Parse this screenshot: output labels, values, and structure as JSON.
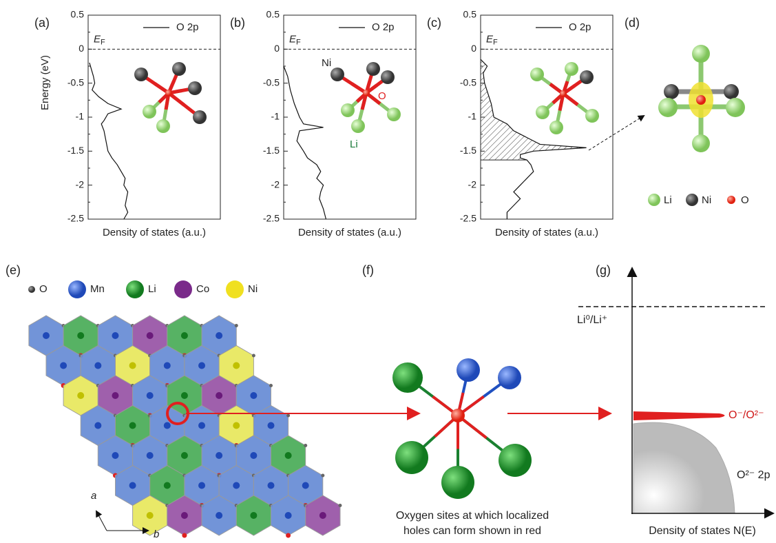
{
  "chart_data": [
    {
      "type": "line",
      "panel_label": "(a)",
      "ylabel": "Energy (eV)",
      "xlabel": "Density of states (a.u.)",
      "fermi_label": {
        "main": "E",
        "sub": "F"
      },
      "ylim": [
        -2.5,
        0.5
      ],
      "yticks": [
        0.5,
        0.0,
        -0.5,
        -1.0,
        -1.5,
        -2.0,
        -2.5
      ],
      "xlim": [
        0,
        1
      ],
      "series": [
        {
          "name": "O 2p",
          "color": "#111",
          "y": [
            -0.2,
            -0.4,
            -0.5,
            -0.6,
            -0.7,
            -0.8,
            -0.88,
            -0.95,
            -1.05,
            -1.1,
            -1.2,
            -1.3,
            -1.4,
            -1.5,
            -1.6,
            -1.7,
            -1.8,
            -1.9,
            -2.0,
            -2.1,
            -2.2,
            -2.3,
            -2.4,
            -2.5
          ],
          "values": [
            0.01,
            0.04,
            0.05,
            0.03,
            0.08,
            0.15,
            0.25,
            0.15,
            0.12,
            0.1,
            0.12,
            0.13,
            0.14,
            0.15,
            0.18,
            0.22,
            0.25,
            0.28,
            0.27,
            0.3,
            0.29,
            0.28,
            0.3,
            0.27
          ]
        }
      ]
    },
    {
      "type": "line",
      "panel_label": "(b)",
      "xlabel": "Density of states (a.u.)",
      "fermi_label": {
        "main": "E",
        "sub": "F"
      },
      "ylim": [
        -2.5,
        0.5
      ],
      "yticks": [
        0.5,
        0.0,
        -0.5,
        -1.0,
        -1.5,
        -2.0,
        -2.5
      ],
      "xlim": [
        0,
        1
      ],
      "annotations": [
        "Ni",
        "O",
        "Li"
      ],
      "series": [
        {
          "name": "O 2p",
          "color": "#111",
          "y": [
            -0.25,
            -0.4,
            -0.6,
            -0.8,
            -1.0,
            -1.1,
            -1.15,
            -1.2,
            -1.35,
            -1.5,
            -1.6,
            -1.7,
            -1.8,
            -1.9,
            -2.0,
            -2.1,
            -2.2,
            -2.35,
            -2.5
          ],
          "values": [
            0.0,
            0.03,
            0.05,
            0.08,
            0.12,
            0.15,
            0.3,
            0.12,
            0.1,
            0.15,
            0.18,
            0.25,
            0.28,
            0.25,
            0.3,
            0.28,
            0.27,
            0.3,
            0.32
          ]
        }
      ]
    },
    {
      "type": "line",
      "panel_label": "(c)",
      "xlabel": "Density of states (a.u.)",
      "fermi_label": {
        "main": "E",
        "sub": "F"
      },
      "ylim": [
        -2.5,
        0.5
      ],
      "yticks": [
        0.5,
        0.0,
        -0.5,
        -1.0,
        -1.5,
        -2.0,
        -2.5
      ],
      "xlim": [
        0,
        1
      ],
      "shade_to": -1.63,
      "series": [
        {
          "name": "O 2p",
          "color": "#111",
          "y": [
            -0.15,
            -0.25,
            -0.35,
            -0.5,
            -0.8,
            -1.0,
            -1.1,
            -1.2,
            -1.3,
            -1.4,
            -1.45,
            -1.5,
            -1.55,
            -1.6,
            -1.63,
            -1.7,
            -1.8,
            -1.9,
            -2.0,
            -2.1,
            -2.2,
            -2.3,
            -2.4,
            -2.5
          ],
          "values": [
            0.0,
            0.05,
            0.02,
            0.03,
            0.08,
            0.1,
            0.2,
            0.25,
            0.35,
            0.45,
            0.8,
            0.4,
            0.3,
            0.3,
            0.35,
            0.38,
            0.4,
            0.35,
            0.3,
            0.25,
            0.3,
            0.25,
            0.2,
            0.2
          ]
        }
      ]
    }
  ],
  "panel_d": {
    "label": "(d)",
    "legend": [
      "Li",
      "Ni",
      "O"
    ]
  },
  "panel_e": {
    "label": "(e)",
    "legend": [
      "O",
      "Mn",
      "Li",
      "Co",
      "Ni"
    ],
    "axes": [
      "a",
      "b"
    ]
  },
  "panel_f": {
    "label": "(f)",
    "caption": [
      "Oxygen sites at which localized",
      "holes can form shown in red"
    ]
  },
  "panel_g": {
    "label": "(g)",
    "level": "Li⁰/Li⁺",
    "band_top": "O⁻/O²⁻",
    "band": "O²⁻ 2p",
    "xlabel": "Density of states N(E)"
  }
}
